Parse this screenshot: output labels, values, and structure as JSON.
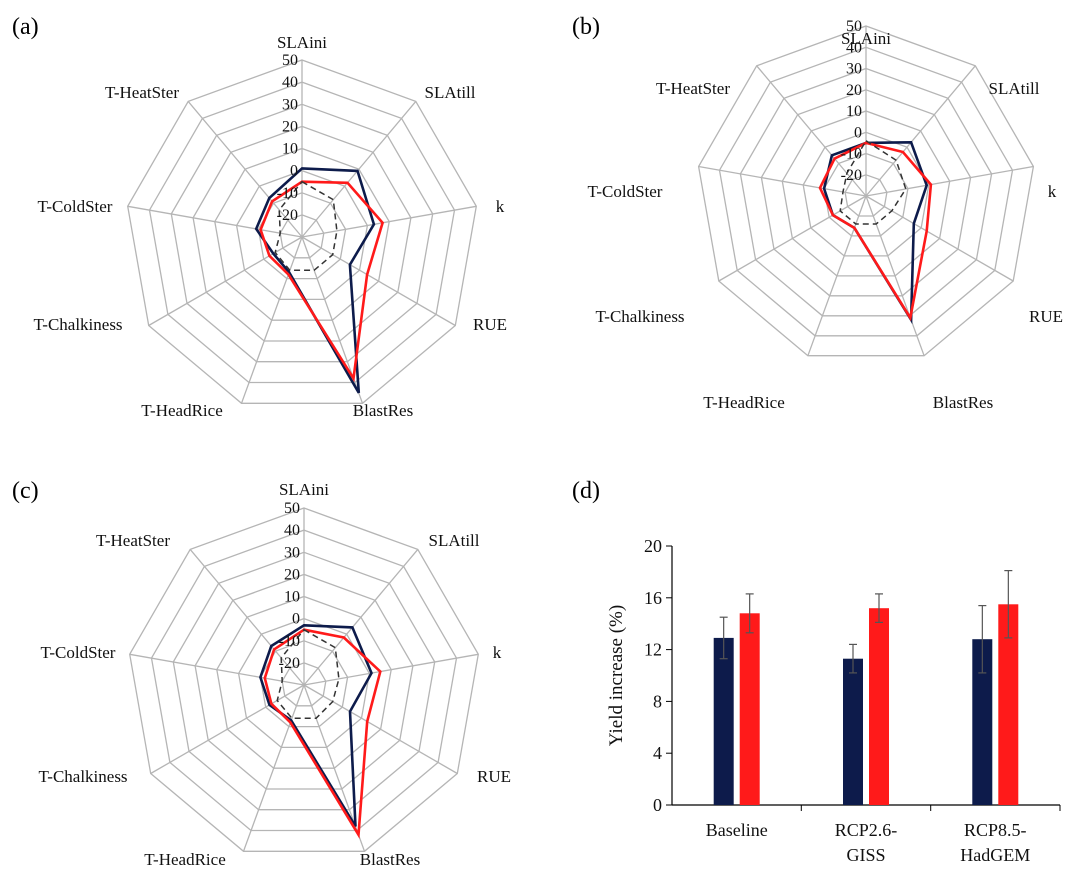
{
  "colors": {
    "navy": "#0d1b4b",
    "red": "#ff1a1a",
    "dash": "#333333",
    "grid": "#b5b5b5",
    "error": "#555555"
  },
  "chart_data": [
    {
      "panel": "(a)",
      "type": "radar",
      "axes": [
        "SLAini",
        "SLAtill",
        "k",
        "RUE",
        "BlastRes",
        "T-HeadRice",
        "T-Chalkiness",
        "T-ColdSter",
        "T-HeatSter"
      ],
      "ticks": [
        "-20",
        "-10",
        "0",
        "10",
        "20",
        "30",
        "40",
        "50"
      ],
      "range": [
        -30,
        50
      ],
      "series": [
        {
          "color": "#0d1b4b",
          "dashed": false,
          "values": [
            1,
            9,
            3,
            -5,
            45,
            -13,
            -15,
            -9,
            -7
          ]
        },
        {
          "color": "#ff1a1a",
          "dashed": false,
          "values": [
            -5,
            2,
            7,
            4,
            38,
            -12,
            -13,
            -11,
            -9
          ]
        },
        {
          "color": "#333333",
          "dashed": true,
          "values": [
            -5,
            -8,
            -14,
            -14,
            -14,
            -14,
            -16,
            -20,
            -14
          ]
        }
      ]
    },
    {
      "panel": "(b)",
      "type": "radar",
      "axes": [
        "SLAini",
        "SLAtill",
        "k",
        "RUE",
        "BlastRes",
        "T-HeadRice",
        "T-Chalkiness",
        "T-ColdSter",
        "T-HeatSter"
      ],
      "ticks": [
        "-20",
        "-10",
        "0",
        "10",
        "20",
        "30",
        "40",
        "50"
      ],
      "range": [
        -30,
        50
      ],
      "series": [
        {
          "color": "#0d1b4b",
          "dashed": false,
          "values": [
            -5,
            3,
            -1,
            -4,
            32,
            -14,
            -12,
            -10,
            -5
          ]
        },
        {
          "color": "#ff1a1a",
          "dashed": false,
          "values": [
            -5,
            -3,
            1,
            3,
            31,
            -14,
            -12,
            -8,
            -7
          ]
        },
        {
          "color": "#333333",
          "dashed": true,
          "values": [
            -4,
            -8,
            -11,
            -16,
            -16,
            -16,
            -16,
            -19,
            -16
          ]
        }
      ]
    },
    {
      "panel": "(c)",
      "type": "radar",
      "axes": [
        "SLAini",
        "SLAtill",
        "k",
        "RUE",
        "BlastRes",
        "T-HeadRice",
        "T-Chalkiness",
        "T-ColdSter",
        "T-HeatSter"
      ],
      "ticks": [
        "-20",
        "-10",
        "0",
        "10",
        "20",
        "30",
        "40",
        "50"
      ],
      "range": [
        -30,
        50
      ],
      "series": [
        {
          "color": "#0d1b4b",
          "dashed": false,
          "values": [
            -3,
            4,
            1,
            -6,
            38,
            -13,
            -12,
            -10,
            -7
          ]
        },
        {
          "color": "#ff1a1a",
          "dashed": false,
          "values": [
            -5,
            -2,
            5,
            3,
            42,
            -12,
            -13,
            -12,
            -9
          ]
        },
        {
          "color": "#333333",
          "dashed": true,
          "values": [
            -5,
            -8,
            -14,
            -15,
            -14,
            -14,
            -16,
            -20,
            -14
          ]
        }
      ]
    },
    {
      "panel": "(d)",
      "type": "bar",
      "categories": [
        [
          "Baseline"
        ],
        [
          "RCP2.6-",
          "GISS"
        ],
        [
          "RCP8.5-",
          "HadGEM"
        ]
      ],
      "ylabel": "Yield increase (%)",
      "ylim": [
        0,
        20
      ],
      "yticks": [
        "0",
        "4",
        "8",
        "12",
        "16",
        "20"
      ],
      "series": [
        {
          "color": "#0d1b4b",
          "values": [
            12.9,
            11.3,
            12.8
          ],
          "errors": [
            1.6,
            1.1,
            2.6
          ]
        },
        {
          "color": "#ff1a1a",
          "values": [
            14.8,
            15.2,
            15.5
          ],
          "errors": [
            1.5,
            1.1,
            2.6
          ]
        }
      ]
    }
  ]
}
